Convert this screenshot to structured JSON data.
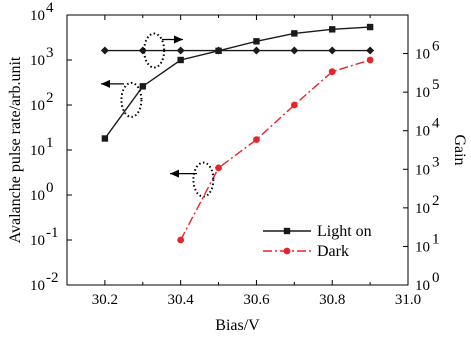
{
  "chart_data": {
    "type": "line",
    "title": "",
    "xlabel": "Bias/V",
    "ylabel_left": "Avalanche pulse rate/arb.unit",
    "ylabel_right": "Gain",
    "x_ticks": [
      "30.2",
      "30.4",
      "30.6",
      "30.8",
      "31.0"
    ],
    "xlim": [
      30.1,
      31.0
    ],
    "y_left_scale": "log",
    "y_left_range": [
      0.01,
      10000
    ],
    "y_left_ticks": [
      {
        "base": "10",
        "exp": "-2",
        "value": 0.01
      },
      {
        "base": "10",
        "exp": "-1",
        "value": 0.1
      },
      {
        "base": "10",
        "exp": "0",
        "value": 1
      },
      {
        "base": "10",
        "exp": "1",
        "value": 10
      },
      {
        "base": "10",
        "exp": "2",
        "value": 100
      },
      {
        "base": "10",
        "exp": "3",
        "value": 1000
      },
      {
        "base": "10",
        "exp": "4",
        "value": 10000
      }
    ],
    "y_right_scale": "log",
    "y_right_range": [
      1,
      10000000
    ],
    "y_right_ticks": [
      {
        "base": "10",
        "exp": "0",
        "value": 1
      },
      {
        "base": "10",
        "exp": "1",
        "value": 10
      },
      {
        "base": "10",
        "exp": "2",
        "value": 100
      },
      {
        "base": "10",
        "exp": "3",
        "value": 1000
      },
      {
        "base": "10",
        "exp": "4",
        "value": 10000
      },
      {
        "base": "10",
        "exp": "5",
        "value": 100000
      },
      {
        "base": "10",
        "exp": "6",
        "value": 1000000
      }
    ],
    "series": [
      {
        "name": "Light on",
        "axis": "left",
        "marker": "square",
        "color": "#1a1a1a",
        "line_style": "solid",
        "x": [
          30.2,
          30.3,
          30.4,
          30.5,
          30.6,
          30.7,
          30.8,
          30.9
        ],
        "y": [
          18,
          260,
          1000,
          1600,
          2600,
          3900,
          4800,
          5400
        ]
      },
      {
        "name": "Dark",
        "axis": "left",
        "marker": "circle",
        "color": "#e8242b",
        "line_style": "dashdot",
        "x": [
          30.4,
          30.5,
          30.6,
          30.7,
          30.8,
          30.9
        ],
        "y": [
          0.1,
          4,
          17,
          100,
          550,
          1000
        ]
      },
      {
        "name": "",
        "axis": "right",
        "marker": "diamond",
        "color": "#1a1a1a",
        "line_style": "solid",
        "x": [
          30.2,
          30.3,
          30.4,
          30.5,
          30.6,
          30.7,
          30.8,
          30.9
        ],
        "y": [
          1200000,
          1200000,
          1200000,
          1200000,
          1200000,
          1200000,
          1200000,
          1200000
        ]
      }
    ],
    "legend": {
      "placement": "bottom-right",
      "entries": [
        {
          "label": "Light on",
          "marker": "square",
          "color": "#1a1a1a",
          "line_style": "solid"
        },
        {
          "label": "Dark",
          "marker": "circle",
          "color": "#e8242b",
          "line_style": "dashdot"
        }
      ]
    },
    "annotations": [
      {
        "type": "dotted-ellipse-arrow",
        "points_to": "right-axis",
        "series": 2,
        "near_x": 30.33
      },
      {
        "type": "dotted-ellipse-arrow",
        "points_to": "left-axis",
        "series": 0,
        "near_x": 30.27
      },
      {
        "type": "dotted-ellipse-arrow",
        "points_to": "left-axis",
        "series": 1,
        "near_x": 30.46
      }
    ],
    "grid": false
  }
}
